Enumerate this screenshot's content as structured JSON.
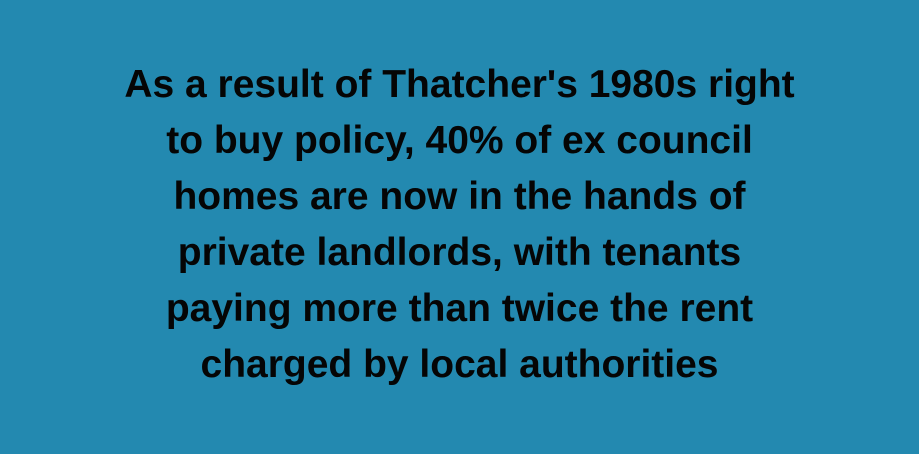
{
  "background_color": "#2389b0",
  "text_color": "#050505",
  "quote": {
    "lines": [
      "As a result of Thatcher's 1980s right",
      "to buy policy, 40% of ex council",
      "homes are now in the hands of",
      "private landlords, with tenants",
      "paying more than twice the rent",
      "charged by local authorities"
    ]
  }
}
